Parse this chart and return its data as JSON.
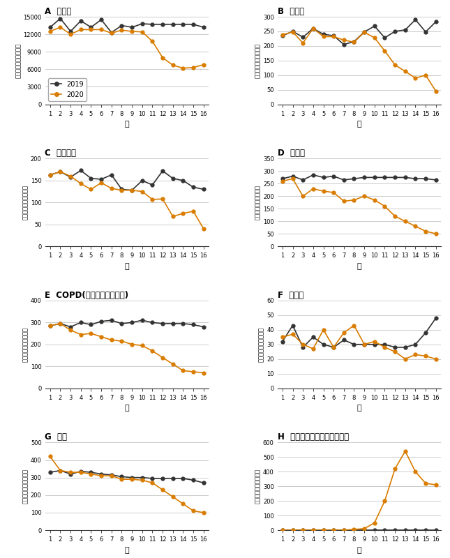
{
  "weeks": [
    1,
    2,
    3,
    4,
    5,
    6,
    7,
    8,
    9,
    10,
    11,
    12,
    13,
    14,
    15,
    16
  ],
  "panels": [
    {
      "label": "A",
      "title": "全入院",
      "ylim": [
        0,
        15000
      ],
      "yticks": [
        0,
        3000,
        6000,
        9000,
        12000,
        15000
      ],
      "y2019": [
        13200,
        14700,
        12500,
        14300,
        13200,
        14500,
        12300,
        13500,
        13200,
        13800,
        13700,
        13700,
        13700,
        13700,
        13700,
        13200
      ],
      "y2020": [
        12500,
        13200,
        12000,
        12800,
        12800,
        12800,
        12200,
        12700,
        12500,
        12400,
        10800,
        8000,
        6700,
        6200,
        6300,
        6800
      ],
      "show_legend": true
    },
    {
      "label": "B",
      "title": "脳梗塞",
      "ylim": [
        0,
        300
      ],
      "yticks": [
        0,
        50,
        100,
        150,
        200,
        250,
        300
      ],
      "y2019": [
        235,
        250,
        230,
        260,
        240,
        235,
        205,
        215,
        248,
        268,
        228,
        250,
        255,
        290,
        248,
        283
      ],
      "y2020": [
        238,
        248,
        210,
        260,
        232,
        232,
        220,
        213,
        247,
        228,
        183,
        135,
        113,
        90,
        100,
        45
      ],
      "show_legend": false
    },
    {
      "label": "C",
      "title": "心筋梗塞",
      "ylim": [
        0,
        200
      ],
      "yticks": [
        0,
        50,
        100,
        150,
        200
      ],
      "y2019": [
        163,
        170,
        158,
        173,
        155,
        153,
        163,
        130,
        128,
        150,
        140,
        172,
        155,
        150,
        135,
        130
      ],
      "y2020": [
        163,
        170,
        160,
        143,
        130,
        145,
        132,
        128,
        128,
        125,
        107,
        108,
        68,
        75,
        80,
        40
      ],
      "show_legend": false
    },
    {
      "label": "D",
      "title": "心不全",
      "ylim": [
        0,
        350
      ],
      "yticks": [
        0,
        50,
        100,
        150,
        200,
        250,
        300,
        350
      ],
      "y2019": [
        270,
        280,
        265,
        285,
        275,
        280,
        265,
        270,
        275,
        275,
        275,
        275,
        275,
        270,
        270,
        265
      ],
      "y2020": [
        260,
        270,
        200,
        230,
        220,
        215,
        180,
        185,
        200,
        185,
        160,
        120,
        100,
        80,
        60,
        50
      ],
      "show_legend": false
    },
    {
      "label": "E",
      "title": "COPD(慢性閉塞性肺疾患)",
      "ylim": [
        0,
        400
      ],
      "yticks": [
        0,
        100,
        200,
        300,
        400
      ],
      "y2019": [
        285,
        295,
        280,
        300,
        290,
        305,
        310,
        295,
        300,
        310,
        300,
        295,
        295,
        295,
        290,
        280
      ],
      "y2020": [
        285,
        295,
        265,
        245,
        250,
        235,
        220,
        215,
        200,
        195,
        170,
        140,
        110,
        80,
        75,
        70
      ],
      "show_legend": false
    },
    {
      "label": "F",
      "title": "虫垂炎",
      "ylim": [
        0,
        60
      ],
      "yticks": [
        0,
        10,
        20,
        30,
        40,
        50,
        60
      ],
      "y2019": [
        32,
        43,
        28,
        35,
        30,
        28,
        33,
        30,
        30,
        30,
        30,
        28,
        28,
        30,
        38,
        48
      ],
      "y2020": [
        35,
        37,
        30,
        27,
        40,
        28,
        38,
        43,
        30,
        32,
        28,
        25,
        20,
        23,
        22,
        20
      ],
      "show_legend": false
    },
    {
      "label": "G",
      "title": "肺炎",
      "ylim": [
        0,
        500
      ],
      "yticks": [
        0,
        100,
        200,
        300,
        400,
        500
      ],
      "y2019": [
        330,
        340,
        320,
        335,
        330,
        320,
        315,
        305,
        300,
        300,
        295,
        295,
        295,
        295,
        285,
        270
      ],
      "y2020": [
        420,
        340,
        330,
        330,
        320,
        310,
        310,
        290,
        290,
        285,
        270,
        230,
        190,
        150,
        110,
        100
      ],
      "show_legend": false
    },
    {
      "label": "H",
      "title": "新型コロナウイルス感染症",
      "ylim": [
        0,
        600
      ],
      "yticks": [
        0,
        100,
        200,
        300,
        400,
        500,
        600
      ],
      "y2019": [
        0,
        0,
        0,
        0,
        0,
        0,
        0,
        0,
        0,
        0,
        0,
        0,
        0,
        0,
        0,
        0
      ],
      "y2020": [
        0,
        0,
        0,
        0,
        0,
        0,
        0,
        5,
        10,
        50,
        200,
        420,
        540,
        400,
        320,
        310
      ],
      "show_legend": false
    }
  ],
  "color_2019": "#333333",
  "color_2020": "#d97c00",
  "xlabel": "週",
  "ylabel": "週当たりの入院患者数",
  "background_color": "#ffffff",
  "grid_color": "#cccccc"
}
